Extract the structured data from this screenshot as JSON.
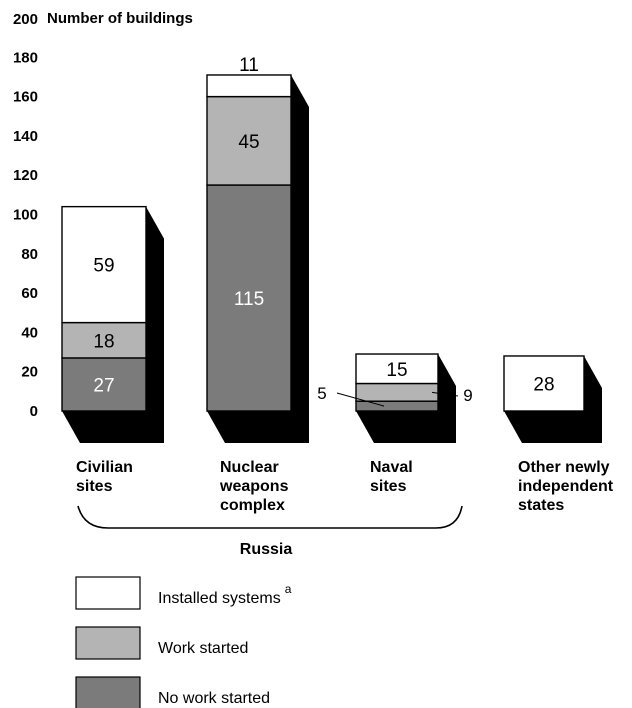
{
  "colors": {
    "installed": "#ffffff",
    "work_started": "#b4b4b4",
    "no_work": "#7b7b7b",
    "shadow": "#000000"
  },
  "chart_data": {
    "type": "bar",
    "stacked": true,
    "ylabel": "Number of buildings",
    "ylim": [
      0,
      200
    ],
    "yticks": [
      "0",
      "20",
      "40",
      "60",
      "80",
      "100",
      "120",
      "140",
      "160",
      "180",
      "200"
    ],
    "categories": [
      {
        "lines": [
          "Civilian",
          "sites"
        ]
      },
      {
        "lines": [
          "Nuclear",
          "weapons",
          "complex"
        ]
      },
      {
        "lines": [
          "Naval",
          "sites"
        ]
      },
      {
        "lines": [
          "Other newly",
          "independent",
          "states"
        ]
      }
    ],
    "series": [
      {
        "name": "No work started",
        "values": [
          27,
          115,
          5,
          0
        ]
      },
      {
        "name": "Work started",
        "values": [
          18,
          45,
          9,
          0
        ]
      },
      {
        "name": "Installed systems",
        "values": [
          59,
          11,
          15,
          28
        ]
      }
    ],
    "value_labels": [
      [
        "27",
        "18",
        "59"
      ],
      [
        "115",
        "45",
        "11"
      ],
      [
        "5",
        "9",
        "15"
      ],
      [
        "",
        "",
        "28"
      ]
    ],
    "group_label": "Russia",
    "legend": [
      {
        "label": "Installed systems",
        "superscript": "a"
      },
      {
        "label": "Work started",
        "superscript": ""
      },
      {
        "label": "No work started",
        "superscript": ""
      }
    ],
    "legend_position": "bottom-left"
  }
}
